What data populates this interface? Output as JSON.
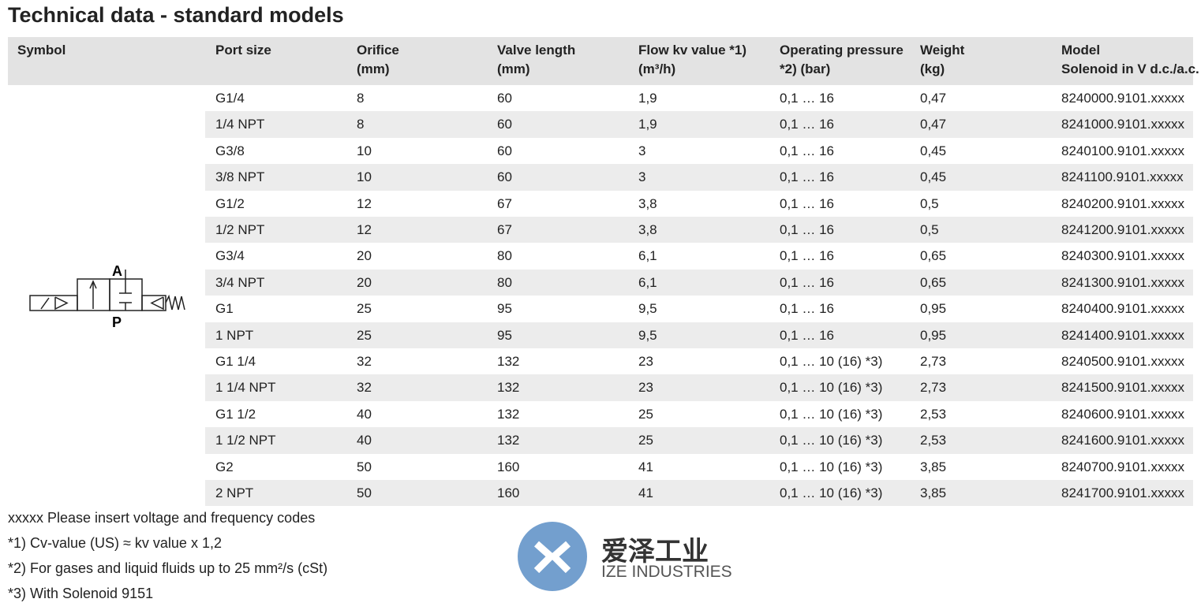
{
  "header": {
    "title": "Technical data - standard models"
  },
  "table": {
    "headers": [
      [
        "Symbol"
      ],
      [
        "Port  size"
      ],
      [
        "Orifice",
        "(mm)"
      ],
      [
        "Valve length",
        "(mm)"
      ],
      [
        "Flow kv value *1)",
        "(m³/h)"
      ],
      [
        "Operating pressure",
        "*2) (bar)"
      ],
      [
        "Weight",
        "(kg)"
      ],
      [
        "Model",
        "Solenoid in V d.c./a.c."
      ]
    ],
    "symbol": {
      "port_a": "A",
      "port_p": "P"
    },
    "rows": [
      [
        "G1/4",
        "8",
        "60",
        "1,9",
        "0,1 … 16",
        "0,47",
        "8240000.9101.xxxxx"
      ],
      [
        "1/4 NPT",
        "8",
        "60",
        "1,9",
        "0,1 … 16",
        "0,47",
        "8241000.9101.xxxxx"
      ],
      [
        "G3/8",
        "10",
        "60",
        "3",
        "0,1 … 16",
        "0,45",
        "8240100.9101.xxxxx"
      ],
      [
        "3/8 NPT",
        "10",
        "60",
        "3",
        "0,1 … 16",
        "0,45",
        "8241100.9101.xxxxx"
      ],
      [
        "G1/2",
        "12",
        "67",
        "3,8",
        "0,1 … 16",
        "0,5",
        "8240200.9101.xxxxx"
      ],
      [
        "1/2 NPT",
        "12",
        "67",
        "3,8",
        "0,1 … 16",
        "0,5",
        "8241200.9101.xxxxx"
      ],
      [
        "G3/4",
        "20",
        "80",
        "6,1",
        "0,1 … 16",
        "0,65",
        "8240300.9101.xxxxx"
      ],
      [
        "3/4 NPT",
        "20",
        "80",
        "6,1",
        "0,1 … 16",
        "0,65",
        "8241300.9101.xxxxx"
      ],
      [
        "G1",
        "25",
        "95",
        "9,5",
        "0,1 … 16",
        "0,95",
        "8240400.9101.xxxxx"
      ],
      [
        "1 NPT",
        "25",
        "95",
        "9,5",
        "0,1 … 16",
        "0,95",
        "8241400.9101.xxxxx"
      ],
      [
        "G1 1/4",
        "32",
        "132",
        "23",
        "0,1 … 10 (16) *3)",
        "2,73",
        "8240500.9101.xxxxx"
      ],
      [
        "1 1/4 NPT",
        "32",
        "132",
        "23",
        "0,1 … 10 (16) *3)",
        "2,73",
        "8241500.9101.xxxxx"
      ],
      [
        "G1 1/2",
        "40",
        "132",
        "25",
        "0,1 … 10 (16) *3)",
        "2,53",
        "8240600.9101.xxxxx"
      ],
      [
        "1 1/2 NPT",
        "40",
        "132",
        "25",
        "0,1 … 10 (16) *3)",
        "2,53",
        "8241600.9101.xxxxx"
      ],
      [
        "G2",
        "50",
        "160",
        "41",
        "0,1 … 10 (16) *3)",
        "3,85",
        "8240700.9101.xxxxx"
      ],
      [
        "2 NPT",
        "50",
        "160",
        "41",
        "0,1 … 10 (16) *3)",
        "3,85",
        "8241700.9101.xxxxx"
      ]
    ]
  },
  "footnotes": [
    "xxxxx Please insert voltage and frequency codes",
    "*1) Cv-value (US) ≈ kv value x 1,2",
    "*2) For gases and liquid fluids up to 25 mm²/s (cSt)",
    "*3) With Solenoid 9151"
  ],
  "watermark": {
    "name": "爱泽工业",
    "subtitle": "IZE INDUSTRIES"
  }
}
